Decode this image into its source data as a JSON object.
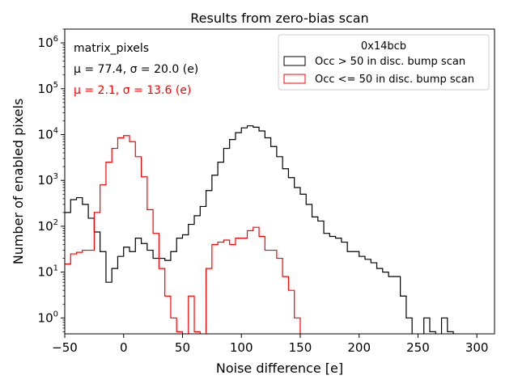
{
  "chart_data": {
    "type": "histogram",
    "title": "Results from zero-bias scan",
    "xlabel": "Noise difference [e]",
    "ylabel": "Number of enabled pixels",
    "xlim": [
      -50,
      315
    ],
    "ylim": [
      0.45,
      2000000
    ],
    "yscale": "log",
    "xticks": [
      -50,
      0,
      50,
      100,
      150,
      200,
      250,
      300
    ],
    "yticks": [
      {
        "value": 1,
        "base": "10",
        "exp": "0"
      },
      {
        "value": 10,
        "base": "10",
        "exp": "1"
      },
      {
        "value": 100,
        "base": "10",
        "exp": "2"
      },
      {
        "value": 1000,
        "base": "10",
        "exp": "3"
      },
      {
        "value": 10000,
        "base": "10",
        "exp": "4"
      },
      {
        "value": 100000,
        "base": "10",
        "exp": "5"
      },
      {
        "value": 1000000,
        "base": "10",
        "exp": "6"
      }
    ],
    "bin_start": -50,
    "bin_width": 5,
    "annotations": [
      {
        "text": "matrix_pixels",
        "color": "#000000"
      },
      {
        "text": "μ = 77.4, σ = 20.0 (e)",
        "color": "#000000"
      },
      {
        "text": "μ = 2.1, σ = 13.6 (e)",
        "color": "#ff0000"
      }
    ],
    "legend": {
      "title": "0x14bcb",
      "position": "top-right"
    },
    "series": [
      {
        "name": "Occ > 50 in disc. bump scan",
        "color": "#000000",
        "values": [
          200,
          380,
          420,
          300,
          150,
          75,
          28,
          6,
          12,
          22,
          35,
          28,
          55,
          42,
          30,
          20,
          20,
          18,
          28,
          55,
          65,
          110,
          170,
          270,
          600,
          1300,
          2500,
          5000,
          7800,
          11000,
          14000,
          15500,
          14500,
          12000,
          8500,
          5500,
          3300,
          1800,
          1150,
          700,
          500,
          300,
          160,
          130,
          70,
          60,
          55,
          45,
          28,
          28,
          22,
          19,
          16,
          12,
          10,
          8,
          8,
          3,
          1,
          0,
          0,
          1,
          0.5,
          0,
          1,
          0.5,
          0,
          0,
          0,
          0,
          0,
          0,
          0,
          0,
          0,
          0,
          0,
          0,
          0,
          0
        ]
      },
      {
        "name": "Occ <= 50 in disc. bump scan",
        "color": "#ff0000",
        "values": [
          15,
          25,
          27,
          30,
          30,
          200,
          800,
          2500,
          5000,
          8500,
          9500,
          7000,
          3300,
          1200,
          230,
          70,
          12,
          3,
          1,
          0.5,
          0,
          3,
          0.5,
          0,
          12,
          40,
          45,
          50,
          40,
          55,
          55,
          80,
          95,
          60,
          30,
          30,
          20,
          8,
          4,
          1,
          0,
          0,
          0,
          0,
          0,
          0,
          0,
          0,
          0,
          0,
          0,
          0,
          0,
          0,
          0,
          0,
          0,
          0,
          0,
          0,
          0,
          0,
          0,
          0,
          0,
          0,
          0,
          0,
          0,
          0,
          0,
          0,
          0,
          0,
          0,
          0,
          0,
          0,
          0,
          0
        ]
      }
    ]
  }
}
